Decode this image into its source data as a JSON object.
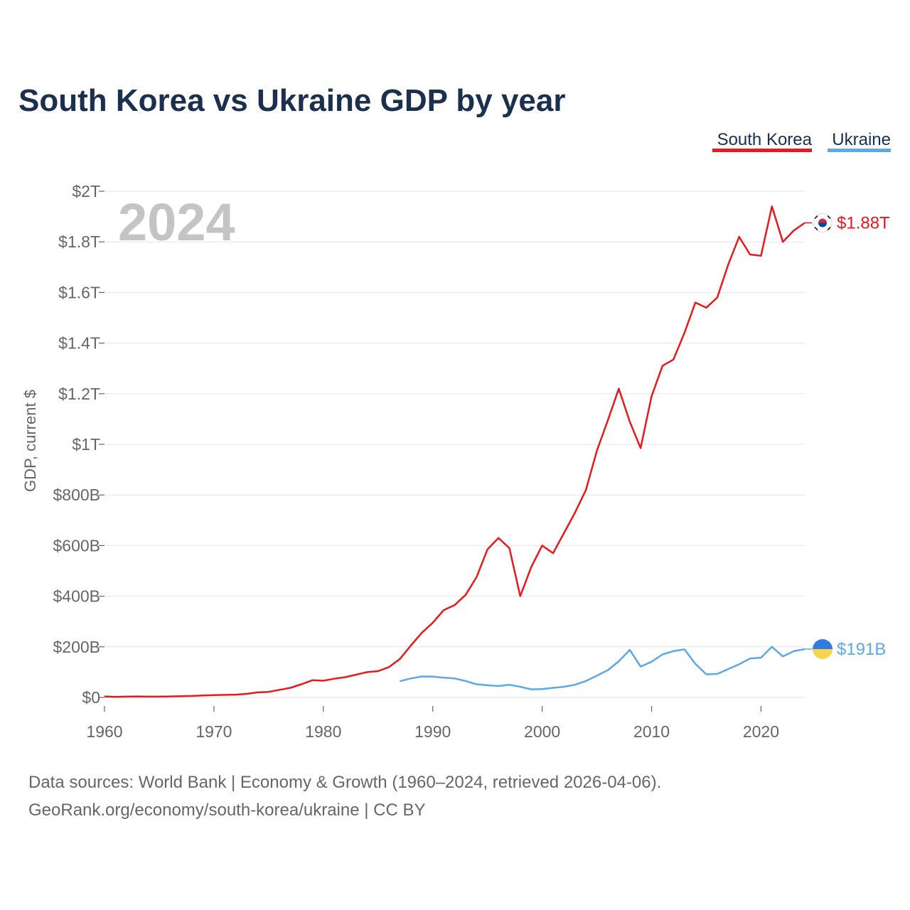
{
  "title": "South Korea vs Ukraine GDP by year",
  "year_label": "2024",
  "source_line1": "Data sources: World Bank | Economy & Growth (1960–2024, retrieved 2026-04-06).",
  "source_line2": "GeoRank.org/economy/south-korea/ukraine | CC BY",
  "colors": {
    "south_korea": "#e8191c",
    "ukraine": "#5da8e6",
    "title": "#1b2f4f",
    "tick": "#666666"
  },
  "flags": {
    "south_korea": "south-korea-flag-icon",
    "ukraine": "ukraine-flag-icon"
  },
  "chart_data": {
    "type": "line",
    "title": "South Korea vs Ukraine GDP by year",
    "xlabel": "",
    "ylabel": "GDP, current $",
    "xlim": [
      1960,
      2024
    ],
    "ylim": [
      0,
      2000
    ],
    "value_unit": "billion USD",
    "x_ticks": [
      1960,
      1970,
      1980,
      1990,
      2000,
      2010,
      2020
    ],
    "x_tick_labels": [
      "1960",
      "1970",
      "1980",
      "1990",
      "2000",
      "2010",
      "2020"
    ],
    "y_ticks": [
      0,
      200,
      400,
      600,
      800,
      1000,
      1200,
      1400,
      1600,
      1800,
      2000
    ],
    "y_tick_labels": [
      "$0",
      "$200B",
      "$400B",
      "$600B",
      "$800B",
      "$1T",
      "$1.2T",
      "$1.4T",
      "$1.6T",
      "$1.8T",
      "$2T"
    ],
    "legend": [
      "South Korea",
      "Ukraine"
    ],
    "legend_position": "top-right",
    "grid": true,
    "series": [
      {
        "name": "South Korea",
        "end_label": "$1.88T",
        "x": [
          1960,
          1961,
          1962,
          1963,
          1964,
          1965,
          1966,
          1967,
          1968,
          1969,
          1970,
          1971,
          1972,
          1973,
          1974,
          1975,
          1976,
          1977,
          1978,
          1979,
          1980,
          1981,
          1982,
          1983,
          1984,
          1985,
          1986,
          1987,
          1988,
          1989,
          1990,
          1991,
          1992,
          1993,
          1994,
          1995,
          1996,
          1997,
          1998,
          1999,
          2000,
          2001,
          2002,
          2003,
          2004,
          2005,
          2006,
          2007,
          2008,
          2009,
          2010,
          2011,
          2012,
          2013,
          2014,
          2015,
          2016,
          2017,
          2018,
          2019,
          2020,
          2021,
          2022,
          2023,
          2024
        ],
        "values": [
          4,
          2,
          3,
          4,
          3,
          3,
          4,
          5,
          6,
          8,
          9,
          10,
          11,
          14,
          20,
          22,
          30,
          38,
          52,
          68,
          66,
          74,
          80,
          90,
          100,
          104,
          120,
          152,
          205,
          255,
          295,
          345,
          365,
          405,
          475,
          585,
          630,
          590,
          400,
          515,
          600,
          570,
          650,
          730,
          820,
          975,
          1095,
          1220,
          1090,
          985,
          1190,
          1310,
          1335,
          1440,
          1560,
          1540,
          1580,
          1710,
          1820,
          1750,
          1745,
          1940,
          1800,
          1845,
          1875
        ]
      },
      {
        "name": "Ukraine",
        "end_label": "$191B",
        "x": [
          1987,
          1988,
          1989,
          1990,
          1991,
          1992,
          1993,
          1994,
          1995,
          1996,
          1997,
          1998,
          1999,
          2000,
          2001,
          2002,
          2003,
          2004,
          2005,
          2006,
          2007,
          2008,
          2009,
          2010,
          2011,
          2012,
          2013,
          2014,
          2015,
          2016,
          2017,
          2018,
          2019,
          2020,
          2021,
          2022,
          2023,
          2024
        ],
        "values": [
          64,
          75,
          83,
          82,
          78,
          75,
          65,
          52,
          48,
          45,
          50,
          42,
          32,
          33,
          38,
          42,
          50,
          65,
          86,
          108,
          143,
          188,
          122,
          141,
          170,
          183,
          190,
          133,
          91,
          93,
          112,
          131,
          154,
          157,
          200,
          162,
          183,
          191
        ]
      }
    ]
  }
}
